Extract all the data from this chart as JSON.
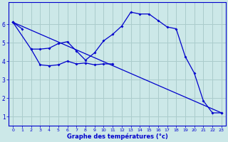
{
  "xlabel": "Graphe des températures (°c)",
  "background_color": "#cce8e8",
  "grid_color": "#aacccc",
  "line_color": "#0000cc",
  "xlim": [
    -0.5,
    23.5
  ],
  "ylim": [
    0.5,
    7.2
  ],
  "xticks": [
    0,
    1,
    2,
    3,
    4,
    5,
    6,
    7,
    8,
    9,
    10,
    11,
    12,
    13,
    14,
    15,
    16,
    17,
    18,
    19,
    20,
    21,
    22,
    23
  ],
  "yticks": [
    1,
    2,
    3,
    4,
    5,
    6
  ],
  "line1_x": [
    0,
    1
  ],
  "line1_y": [
    6.1,
    5.75
  ],
  "line2_x": [
    0,
    2,
    3,
    4,
    5,
    6,
    7,
    8,
    9,
    10,
    11,
    12,
    13,
    14,
    15,
    16,
    17,
    18,
    19,
    20,
    21,
    22,
    23
  ],
  "line2_y": [
    6.1,
    4.65,
    4.65,
    4.7,
    4.95,
    5.05,
    4.55,
    4.05,
    4.45,
    5.1,
    5.45,
    5.9,
    6.65,
    6.55,
    6.55,
    6.2,
    5.85,
    5.75,
    4.25,
    3.35,
    1.85,
    1.2,
    1.2
  ],
  "line3_x": [
    2,
    3,
    4,
    5,
    6,
    7,
    8,
    9,
    10,
    11
  ],
  "line3_y": [
    4.65,
    3.8,
    3.75,
    3.8,
    4.0,
    3.85,
    3.9,
    3.8,
    3.85,
    3.85
  ],
  "line4_x": [
    0,
    23
  ],
  "line4_y": [
    6.1,
    1.2
  ]
}
